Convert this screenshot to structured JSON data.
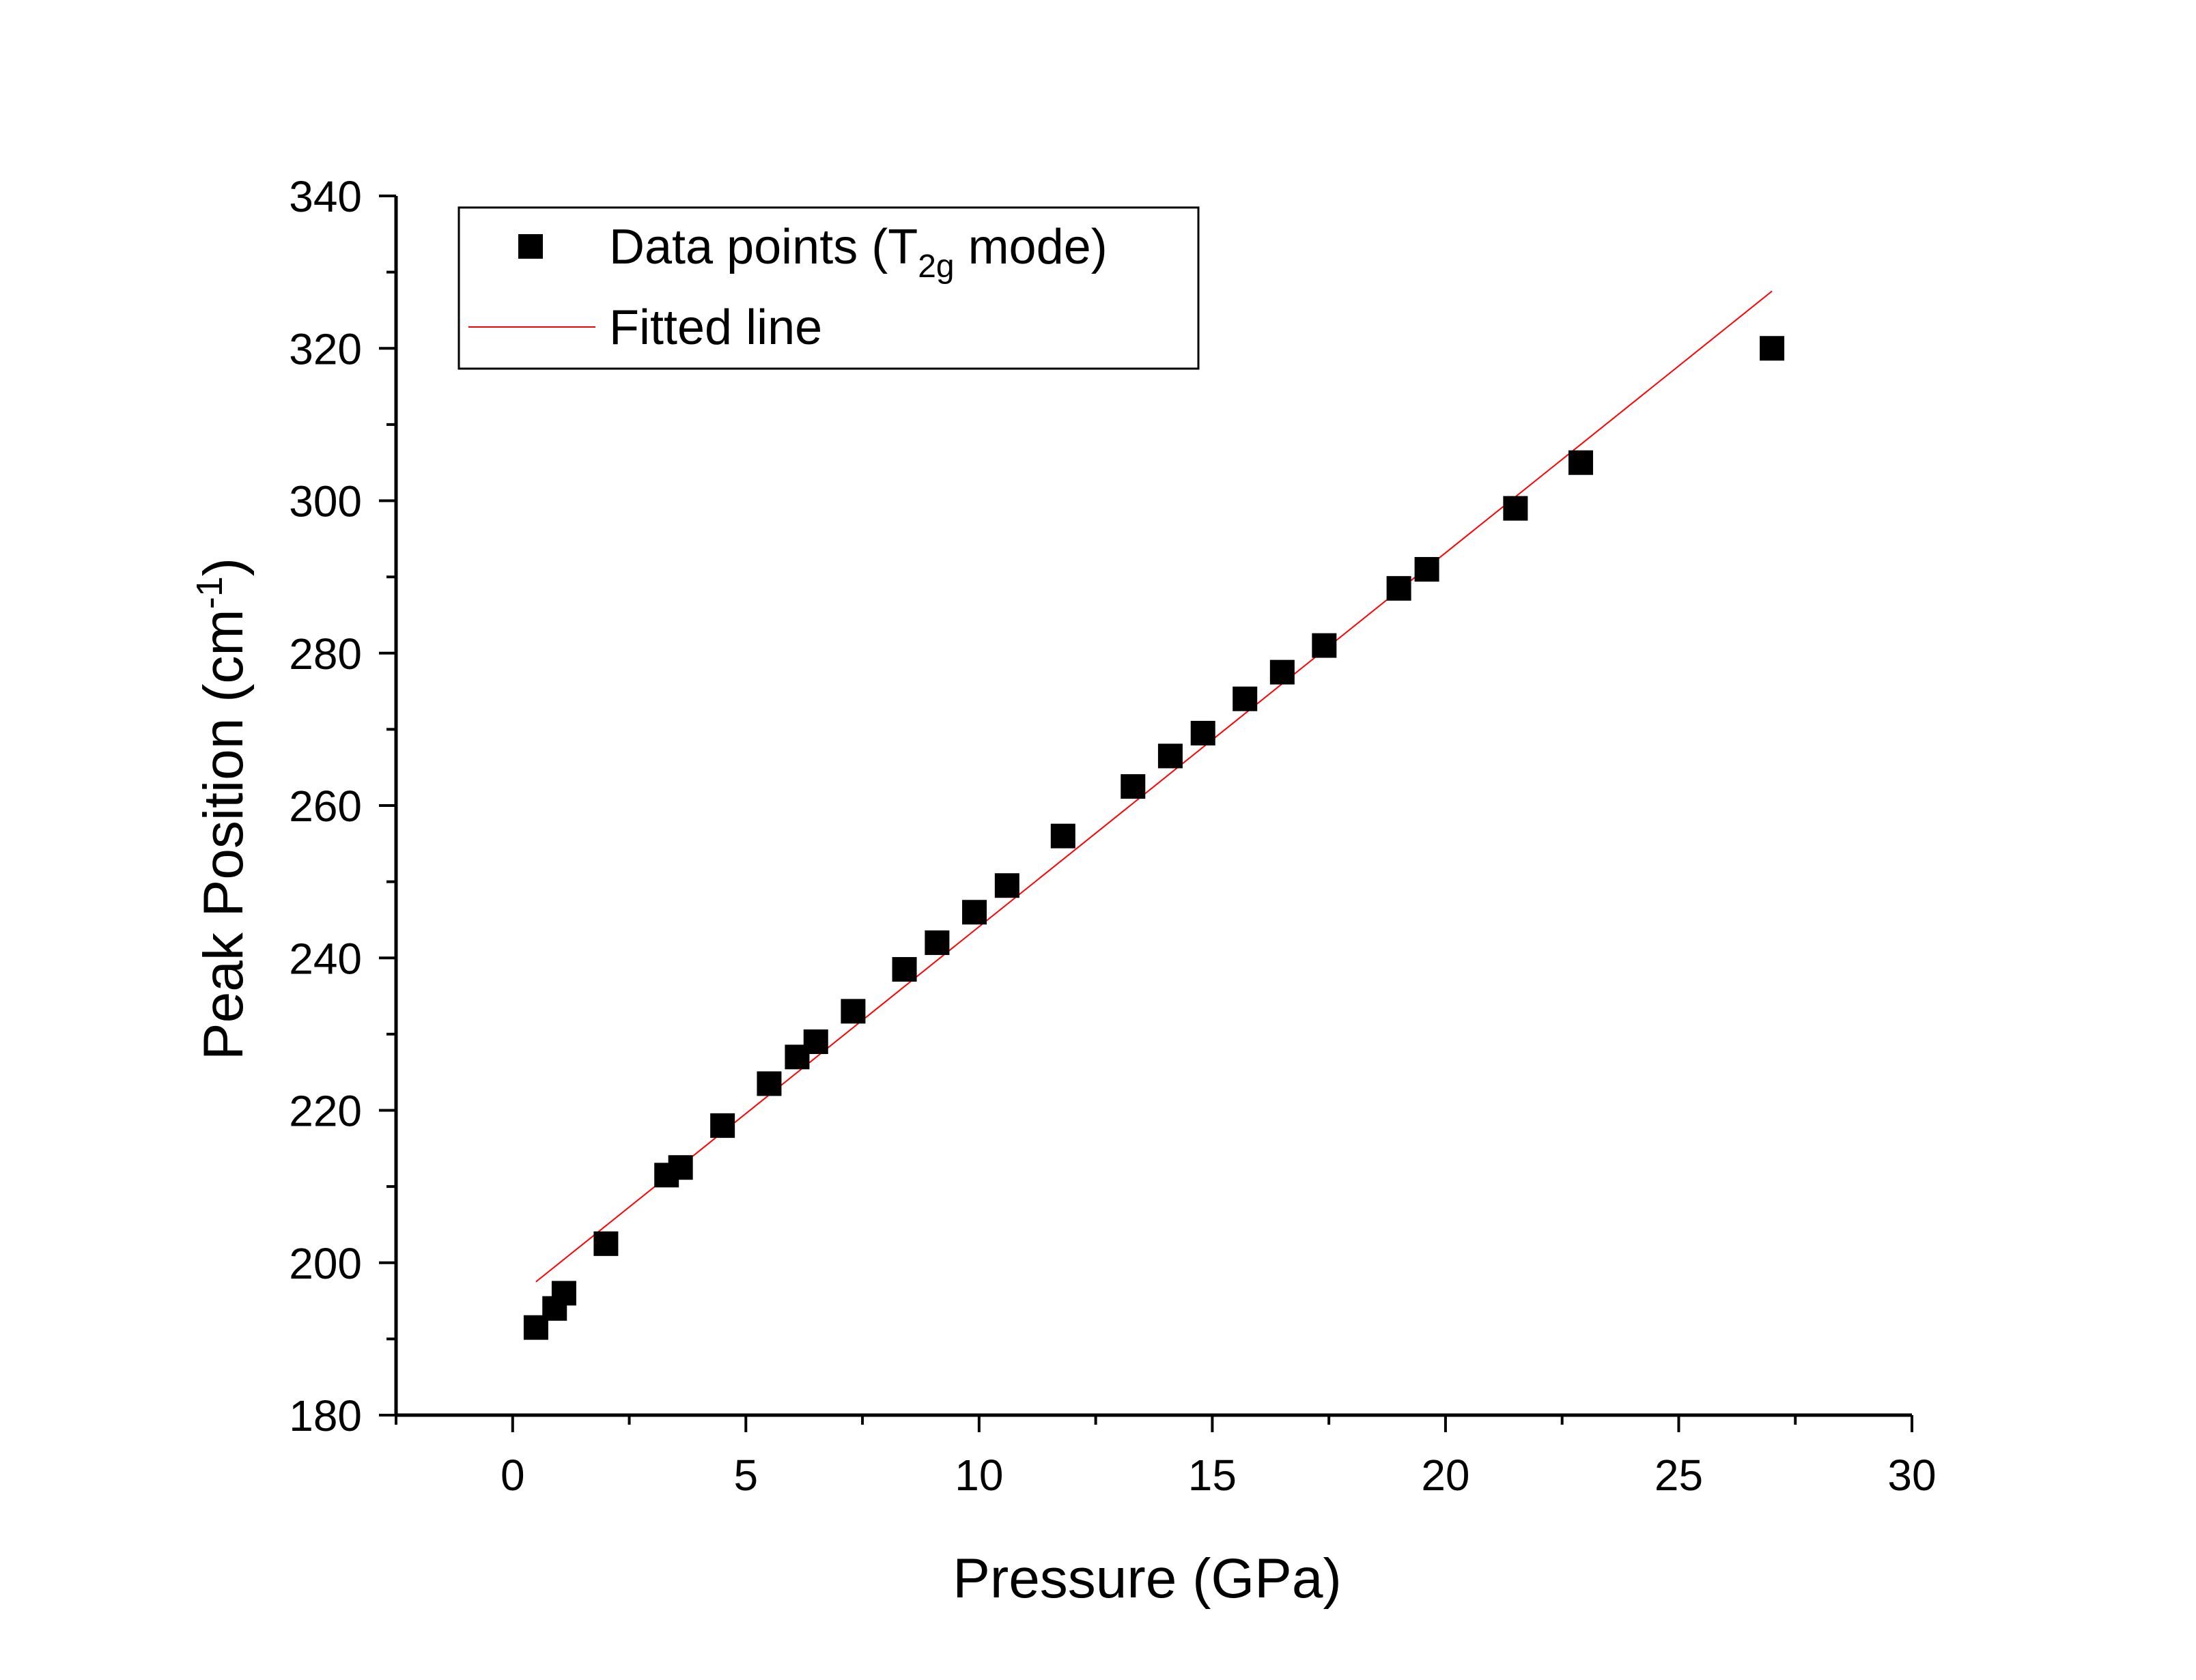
{
  "chart_data": {
    "type": "scatter",
    "title": "",
    "xlabel": "Pressure (GPa)",
    "ylabel": {
      "main": "Peak Position (cm",
      "sup": "-1",
      "close": ")"
    },
    "xlim": [
      -2.5,
      30
    ],
    "ylim": [
      180,
      340
    ],
    "x_ticks": [
      0,
      5,
      10,
      15,
      20,
      25,
      30
    ],
    "y_ticks": [
      180,
      200,
      220,
      240,
      260,
      280,
      300,
      320,
      340
    ],
    "x_tick_labels": [
      "0",
      "5",
      "10",
      "15",
      "20",
      "25",
      "30"
    ],
    "y_tick_labels": [
      "180",
      "200",
      "220",
      "240",
      "260",
      "280",
      "300",
      "320",
      "340"
    ],
    "grid": false,
    "legend": {
      "position": "top-left",
      "entries": [
        {
          "name": "Data points (T",
          "sub": "2g",
          "tail": " mode)",
          "marker": "square",
          "color": "#000000"
        },
        {
          "name": "Fitted line",
          "marker": "line",
          "color": "#ff0000"
        }
      ]
    },
    "series": [
      {
        "name": "Data points (T2g mode)",
        "kind": "scatter",
        "color": "#000000",
        "x": [
          0.5,
          0.9,
          1.1,
          2.0,
          3.3,
          3.6,
          4.5,
          5.5,
          6.1,
          6.5,
          7.3,
          8.4,
          9.1,
          9.9,
          10.6,
          11.8,
          13.3,
          14.1,
          14.8,
          15.7,
          16.5,
          17.4,
          19.0,
          19.6,
          21.5,
          22.9,
          27.0
        ],
        "y": [
          191.5,
          194.0,
          196.0,
          202.5,
          211.5,
          212.5,
          218.0,
          223.5,
          227.0,
          229.0,
          233.0,
          238.5,
          242.0,
          246.0,
          249.5,
          256.0,
          262.5,
          266.5,
          269.5,
          274.0,
          277.5,
          281.0,
          288.5,
          291.0,
          299.0,
          305.0,
          320.0
        ]
      },
      {
        "name": "Fitted line",
        "kind": "line",
        "color": "#ff0000",
        "x": [
          0.5,
          27.0
        ],
        "y": [
          197.5,
          327.5
        ]
      }
    ]
  }
}
